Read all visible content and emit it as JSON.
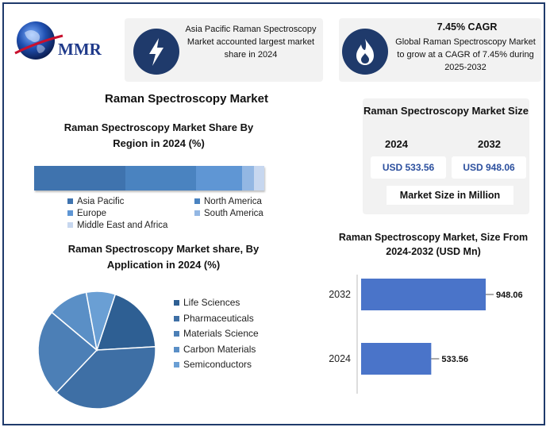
{
  "header": {
    "logo_text": "MMR",
    "card1_text": "Asia Pacific Raman Spectroscopy Market accounted largest market share in 2024",
    "card2_title": "7.45% CAGR",
    "card2_text": "Global Raman Spectroscopy Market to grow at a CAGR of 7.45% during 2025-2032",
    "icon1": "lightning-bolt-icon",
    "icon2": "flame-icon"
  },
  "main_title": "Raman Spectroscopy Market",
  "size_box": {
    "title": "Raman Spectroscopy Market Size",
    "year1": "2024",
    "year2": "2032",
    "value1": "USD 533.56",
    "value2": "USD 948.06",
    "note": "Market Size in Million"
  },
  "colors": {
    "navy": "#1f3a6b",
    "bar_blue": "#4a74c9"
  },
  "chart_data": [
    {
      "type": "bar",
      "orientation": "horizontal-stacked",
      "title": "Raman Spectroscopy Market Share By Region in 2024 (%)",
      "legend_position": "bottom",
      "series": [
        {
          "name": "Asia Pacific",
          "value": 39,
          "color": "#3f73ae"
        },
        {
          "name": "North America",
          "value": 30,
          "color": "#4a83c0"
        },
        {
          "name": "Europe",
          "value": 19.5,
          "color": "#5f96d4"
        },
        {
          "name": "South America",
          "value": 5,
          "color": "#93b7e3"
        },
        {
          "name": "Middle East and Africa",
          "value": 4.5,
          "color": "#c7d7ef"
        }
      ]
    },
    {
      "type": "pie",
      "title": "Raman Spectroscopy Market share, By Application in 2024  (%)",
      "legend_position": "right",
      "slices": [
        {
          "name": "Life Sciences",
          "value": 19,
          "color": "#2e5f93"
        },
        {
          "name": "Pharmaceuticals",
          "value": 38,
          "color": "#3e6fa5"
        },
        {
          "name": "Materials Science",
          "value": 24,
          "color": "#4c7fb6"
        },
        {
          "name": "Carbon Materials",
          "value": 11,
          "color": "#5a8fc6"
        },
        {
          "name": "Semiconductors",
          "value": 8,
          "color": "#6a9fd4"
        }
      ]
    },
    {
      "type": "bar",
      "orientation": "horizontal",
      "title": "Raman Spectroscopy Market, Size From 2024-2032 (USD Mn)",
      "categories": [
        "2032",
        "2024"
      ],
      "values": [
        948.06,
        533.56
      ],
      "data_labels": [
        "948.06",
        "533.56"
      ],
      "xlim": [
        0,
        948.06
      ]
    }
  ]
}
